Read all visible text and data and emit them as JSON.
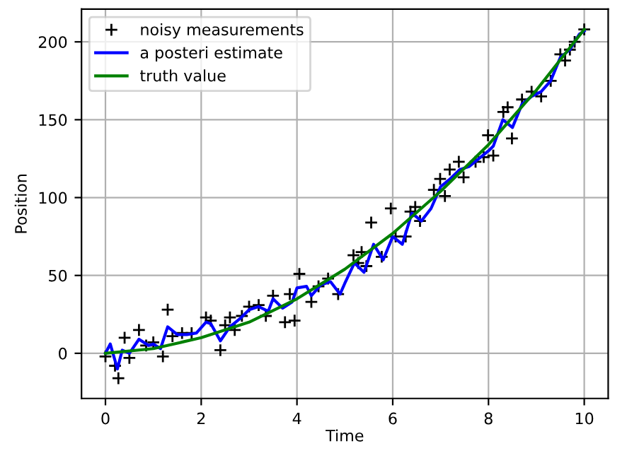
{
  "chart_data": {
    "type": "line",
    "xlabel": "Time",
    "ylabel": "Position",
    "xlim": [
      -0.5,
      10.5
    ],
    "ylim": [
      -29,
      221
    ],
    "xticks": [
      0,
      2,
      4,
      6,
      8,
      10
    ],
    "yticks": [
      0,
      50,
      100,
      150,
      200
    ],
    "grid": true,
    "legend": "top left",
    "series": [
      {
        "name": "noisy measurements",
        "type": "scatter",
        "marker": "cross",
        "color": "#000000",
        "x": [
          0,
          0.2,
          0.27,
          0.4,
          0.5,
          0.7,
          0.85,
          1.0,
          1.2,
          1.3,
          1.4,
          1.6,
          1.8,
          2.1,
          2.2,
          2.4,
          2.5,
          2.6,
          2.7,
          2.85,
          3.0,
          3.2,
          3.35,
          3.5,
          3.75,
          3.85,
          3.95,
          4.05,
          4.3,
          4.45,
          4.65,
          4.86,
          5.18,
          5.28,
          5.35,
          5.45,
          5.55,
          5.77,
          5.96,
          6.06,
          6.27,
          6.37,
          6.47,
          6.57,
          6.86,
          6.99,
          7.09,
          7.19,
          7.38,
          7.48,
          7.73,
          7.9,
          7.99,
          8.1,
          8.31,
          8.4,
          8.49,
          8.7,
          8.9,
          9.1,
          9.3,
          9.5,
          9.6,
          9.7,
          9.8,
          10
        ],
        "values": [
          -2,
          -8,
          -16,
          10,
          -3,
          15,
          5,
          7,
          -2,
          28,
          11,
          13,
          13,
          23,
          21,
          2,
          18,
          23,
          15,
          24,
          30,
          31,
          24,
          37,
          20,
          38,
          21,
          51,
          33,
          43,
          48,
          38,
          63,
          58,
          65,
          56,
          84,
          62,
          93,
          75,
          75,
          91,
          94,
          85,
          105,
          112,
          101,
          118,
          123,
          113,
          123,
          126,
          140,
          127,
          155,
          158,
          138,
          163,
          168,
          165,
          175,
          192,
          188,
          195,
          200,
          208
        ]
      },
      {
        "name": "a posteri estimate",
        "color": "#0000ff",
        "x": [
          0,
          0.1,
          0.25,
          0.35,
          0.5,
          0.7,
          0.9,
          1.0,
          1.15,
          1.3,
          1.5,
          1.7,
          1.9,
          2.1,
          2.2,
          2.4,
          2.6,
          2.8,
          3.0,
          3.2,
          3.4,
          3.5,
          3.7,
          3.9,
          4.0,
          4.2,
          4.3,
          4.5,
          4.7,
          4.9,
          5.0,
          5.2,
          5.4,
          5.6,
          5.8,
          6.0,
          6.2,
          6.4,
          6.6,
          6.8,
          7.0,
          7.2,
          7.4,
          7.6,
          7.8,
          8.0,
          8.1,
          8.3,
          8.5,
          8.7,
          8.9,
          9.1,
          9.3,
          9.5,
          9.7,
          9.9,
          10
        ],
        "values": [
          0,
          6,
          -10,
          2,
          0,
          9,
          5,
          6,
          3,
          17,
          12,
          12,
          13,
          20,
          19,
          8,
          17,
          22,
          28,
          30,
          27,
          35,
          29,
          33,
          42,
          43,
          37,
          44,
          46,
          38,
          45,
          58,
          52,
          70,
          60,
          75,
          70,
          90,
          85,
          93,
          107,
          112,
          118,
          120,
          125,
          130,
          133,
          150,
          145,
          160,
          165,
          168,
          175,
          190,
          195,
          205,
          207
        ]
      },
      {
        "name": "truth value",
        "color": "#008000",
        "x": [
          0,
          1,
          2,
          3,
          4,
          5,
          6,
          7,
          8,
          9,
          10
        ],
        "values": [
          0,
          3,
          10,
          20,
          35,
          54,
          77,
          104,
          134,
          169,
          208
        ]
      }
    ]
  }
}
